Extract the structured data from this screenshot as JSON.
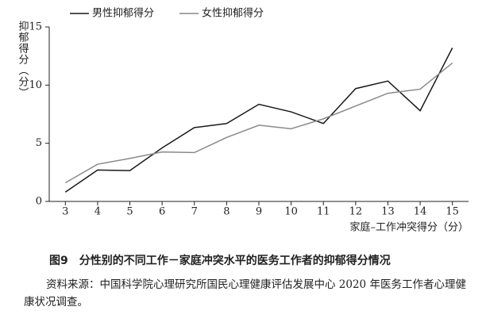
{
  "chart_data": {
    "type": "line",
    "y_label": "抑郁得分（分）",
    "x_label": "家庭–工作冲突得分（分）",
    "categories": [
      "3",
      "4",
      "5",
      "6",
      "7",
      "8",
      "9",
      "10",
      "11",
      "12",
      "13",
      "14",
      "15"
    ],
    "series": [
      {
        "name": "男性抑郁得分",
        "color": "#1a1a1a",
        "values": [
          0.8,
          2.7,
          2.65,
          4.6,
          6.35,
          6.7,
          8.35,
          7.7,
          6.7,
          9.7,
          10.35,
          7.8,
          13.2
        ]
      },
      {
        "name": "女性抑郁得分",
        "color": "#8a8a8a",
        "values": [
          1.6,
          3.2,
          3.7,
          4.25,
          4.2,
          5.5,
          6.55,
          6.25,
          7.1,
          8.2,
          9.3,
          9.65,
          11.9
        ]
      }
    ],
    "ylim": [
      0,
      15
    ],
    "yticks": [
      0,
      5,
      10,
      15
    ],
    "legend": "top",
    "caption": "图9　分性别的不同工作－家庭冲突水平的医务工作者的抑郁得分情况",
    "source": "资料来源：中国科学院心理研究所国民心理健康评估发展中心 2020 年医务工作者心理健康状况调查。"
  }
}
